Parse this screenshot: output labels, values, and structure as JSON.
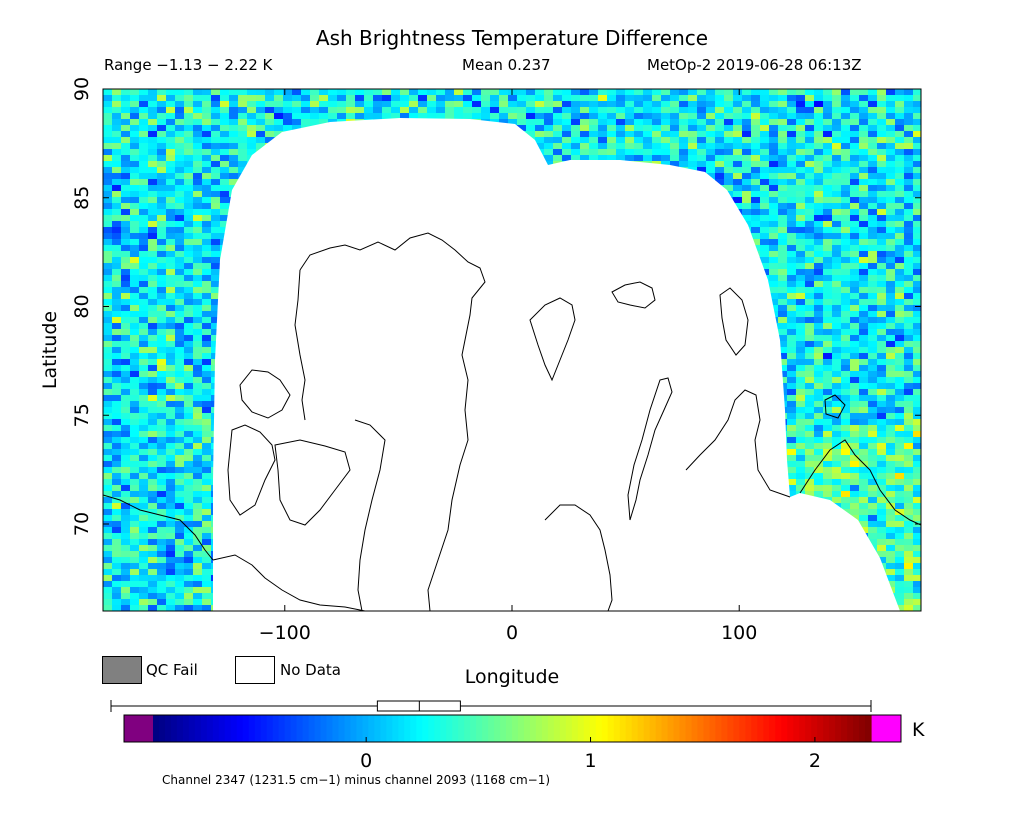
{
  "header": {
    "title": "Ash Brightness Temperature Difference",
    "range": "Range −1.13 − 2.22 K",
    "mean": "Mean 0.237",
    "satellite_time": "MetOp-2 2019-06-28 06:13Z"
  },
  "legend": {
    "qc_fail": "QC Fail",
    "no_data": "No Data",
    "qc_fail_color": "#808080",
    "no_data_color": "#ffffff"
  },
  "colorbar": {
    "unit": "K",
    "min": -0.95,
    "max": 2.25,
    "ticks": [
      0,
      1,
      2
    ],
    "under_color": "#800080",
    "over_color": "#ff00ff",
    "box_range": [
      0.05,
      0.42
    ],
    "box_median": 0.237
  },
  "footnote": "Channel 2347 (1231.5 cm−1) minus channel 2093 (1168 cm−1)",
  "chart_data": {
    "type": "heatmap",
    "title": "Ash Brightness Temperature Difference",
    "xlabel": "Longitude",
    "ylabel": "Latitude",
    "xlim": [
      -180,
      180
    ],
    "ylim": [
      66,
      90
    ],
    "xticks": [
      -100,
      0,
      100
    ],
    "yticks": [
      70,
      75,
      80,
      85,
      90
    ],
    "value_range": [
      -1.13,
      2.22
    ],
    "mean": 0.237,
    "units": "K"
  }
}
